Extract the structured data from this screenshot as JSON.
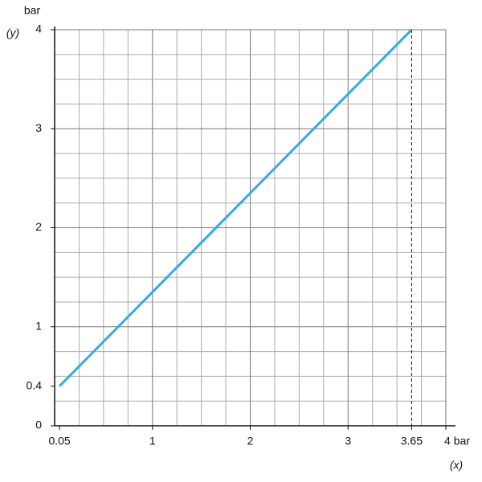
{
  "chart_data": {
    "type": "line",
    "y_unit": "bar",
    "y_label": "(y)",
    "x_label": "(x)",
    "series": [
      {
        "color": "#3aa8e0",
        "x": [
          0.05,
          3.65
        ],
        "values": [
          0.4,
          4
        ]
      }
    ],
    "xlim": [
      0,
      4
    ],
    "ylim": [
      0,
      4
    ],
    "xticks": [
      0.05,
      1,
      2,
      3,
      3.65,
      {
        "value": 4,
        "label": "4 bar"
      }
    ],
    "yticks": [
      0,
      0.4,
      1,
      2,
      3,
      4
    ],
    "grid": true
  }
}
